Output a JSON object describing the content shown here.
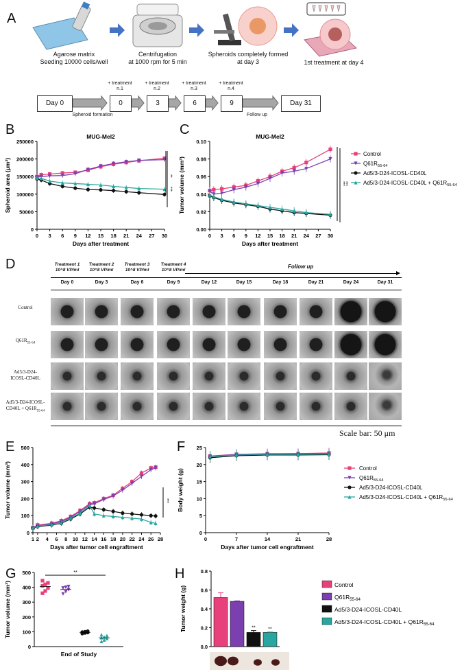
{
  "panels": {
    "A": "A",
    "B": "B",
    "C": "C",
    "D": "D",
    "E": "E",
    "F": "F",
    "G": "G",
    "H": "H"
  },
  "panelA": {
    "step1": [
      "Agarose matrix",
      "Seeding 10000 cells/well"
    ],
    "step2": [
      "Centrifugation",
      "at 1000 rpm for 5 min"
    ],
    "step3": [
      "Spheroids completely formed",
      "at day 3"
    ],
    "step4": "1st treatment at day 4",
    "timeline": {
      "boxes": [
        "Day 0",
        "0",
        "3",
        "6",
        "9",
        "Day 31"
      ],
      "treat_top": [
        "+ treatment",
        "+ treatment",
        "+ treatment",
        "+ treatment"
      ],
      "treat_n": [
        "n.1",
        "n.2",
        "n.3",
        "n.4"
      ],
      "spheroid_formation": "Spheroid formation",
      "follow_up": "Follow up"
    }
  },
  "panelD": {
    "treatments": [
      [
        "Treatment 1",
        "10^8 VP/ml"
      ],
      [
        "Treatment 2",
        "10^8 VP/ml"
      ],
      [
        "Treatment 3",
        "10^8 VP/ml"
      ],
      [
        "Treatment 4",
        "10^8 VP/ml"
      ]
    ],
    "follow_up": "Follow up",
    "days": [
      "Day 0",
      "Day 3",
      "Day 6",
      "Day 9",
      "Day 12",
      "Day 15",
      "Day 18",
      "Day 21",
      "Day 24",
      "Day 31"
    ],
    "rows": [
      [
        "Control"
      ],
      [
        "Q61R55-64"
      ],
      [
        "Ad5/3-D24-",
        "ICOSL-CD40L"
      ],
      [
        "Ad5/3-D24-ICOSL-",
        "CD40L + Q61R55-64"
      ]
    ],
    "scale_bar": "Scale bar: 50 μm"
  },
  "colors": {
    "control": "#e8407a",
    "q61r": "#7b3fb0",
    "ad": "#111111",
    "combo": "#2aa6a0"
  },
  "legend": [
    "Control",
    "Q61R55-64",
    "Ad5/3-D24-ICOSL-CD40L",
    "Ad5/3-D24-ICOSL-CD40L + Q61R55-64"
  ],
  "chart_data": [
    {
      "id": "B",
      "type": "line",
      "title": "MUG-Mel2",
      "xlabel": "Days after treatment",
      "ylabel": "Spheroid area (μm²)",
      "x": [
        0,
        1,
        3,
        6,
        9,
        12,
        15,
        18,
        21,
        24,
        30
      ],
      "xticks": [
        0,
        3,
        6,
        9,
        12,
        15,
        18,
        21,
        24,
        27,
        30
      ],
      "ylim": [
        0,
        250000
      ],
      "yticks": [
        0,
        50000,
        100000,
        150000,
        200000,
        250000
      ],
      "series": [
        {
          "name": "Control",
          "values": [
            150000,
            155000,
            157000,
            160000,
            162000,
            168000,
            178000,
            185000,
            190000,
            195000,
            202000
          ]
        },
        {
          "name": "Q61R55-64",
          "values": [
            149000,
            150000,
            152000,
            153000,
            158000,
            170000,
            180000,
            187000,
            192000,
            196000,
            198000
          ]
        },
        {
          "name": "Ad5/3-D24-ICOSL-CD40L",
          "values": [
            143000,
            140000,
            130000,
            122000,
            117000,
            113000,
            112000,
            110000,
            107000,
            104000,
            99000
          ]
        },
        {
          "name": "Ad5/3-D24-ICOSL-CD40L + Q61R55-64",
          "values": [
            146000,
            145000,
            137000,
            132000,
            130000,
            128000,
            126000,
            122000,
            119000,
            116000,
            114000
          ]
        }
      ],
      "significance": [
        "**",
        "***"
      ]
    },
    {
      "id": "C",
      "type": "line",
      "title": "MUG-Mel2",
      "xlabel": "Days after treatment",
      "ylabel": "Tumor volume (mm³)",
      "x": [
        0,
        1,
        3,
        6,
        9,
        12,
        15,
        18,
        21,
        24,
        30
      ],
      "xticks": [
        0,
        3,
        6,
        9,
        12,
        15,
        18,
        21,
        24,
        27,
        30
      ],
      "ylim": [
        0,
        0.1
      ],
      "yticks": [
        0.0,
        0.02,
        0.04,
        0.06,
        0.08,
        0.1
      ],
      "series": [
        {
          "name": "Control",
          "values": [
            0.044,
            0.045,
            0.046,
            0.048,
            0.05,
            0.055,
            0.06,
            0.066,
            0.07,
            0.076,
            0.091
          ]
        },
        {
          "name": "Q61R55-64",
          "values": [
            0.043,
            0.04,
            0.041,
            0.045,
            0.048,
            0.052,
            0.058,
            0.064,
            0.066,
            0.069,
            0.08
          ]
        },
        {
          "name": "Ad5/3-D24-ICOSL-CD40L",
          "values": [
            0.038,
            0.036,
            0.033,
            0.03,
            0.028,
            0.026,
            0.023,
            0.021,
            0.019,
            0.018,
            0.016
          ]
        },
        {
          "name": "Ad5/3-D24-ICOSL-CD40L + Q61R55-64",
          "values": [
            0.039,
            0.037,
            0.034,
            0.031,
            0.029,
            0.027,
            0.025,
            0.023,
            0.021,
            0.019,
            0.017
          ]
        }
      ],
      "significance": [
        "***",
        "***"
      ]
    },
    {
      "id": "E",
      "type": "line",
      "xlabel": "Days after tumor cell engraftment",
      "ylabel": "Tumor volume (mm³)",
      "x": [
        1,
        2,
        5,
        7,
        9,
        11,
        13,
        14,
        16,
        18,
        20,
        22,
        24,
        26,
        27
      ],
      "xticks": [
        1,
        2,
        4,
        6,
        8,
        10,
        12,
        14,
        16,
        18,
        20,
        22,
        24,
        26,
        28
      ],
      "ylim": [
        0,
        500
      ],
      "yticks": [
        0,
        100,
        200,
        300,
        400,
        500
      ],
      "series": [
        {
          "name": "Control",
          "values": [
            30,
            45,
            55,
            70,
            95,
            130,
            170,
            175,
            200,
            220,
            260,
            300,
            350,
            380,
            385
          ]
        },
        {
          "name": "Q61R55-64",
          "values": [
            28,
            40,
            52,
            65,
            90,
            125,
            165,
            170,
            195,
            215,
            250,
            290,
            330,
            370,
            380
          ]
        },
        {
          "name": "Ad5/3-D24-ICOSL-CD40L",
          "values": [
            25,
            35,
            45,
            55,
            80,
            110,
            150,
            145,
            135,
            125,
            115,
            110,
            105,
            100,
            98
          ]
        },
        {
          "name": "Ad5/3-D24-ICOSL-CD40L + Q61R55-64",
          "values": [
            27,
            38,
            48,
            58,
            85,
            115,
            160,
            110,
            100,
            95,
            90,
            85,
            80,
            60,
            55
          ]
        }
      ],
      "significance": [
        "***"
      ]
    },
    {
      "id": "F",
      "type": "line",
      "xlabel": "Days after tumor cell engraftment",
      "ylabel": "Body weight (g)",
      "x": [
        1,
        7,
        14,
        21,
        28
      ],
      "xticks": [
        0,
        7,
        14,
        21,
        28
      ],
      "ylim": [
        0,
        25
      ],
      "yticks": [
        0,
        5,
        10,
        15,
        20,
        25
      ],
      "series": [
        {
          "name": "Control",
          "values": [
            22.5,
            23.0,
            23.2,
            23.2,
            23.4
          ]
        },
        {
          "name": "Q61R55-64",
          "values": [
            22.4,
            23.0,
            23.1,
            23.2,
            23.2
          ]
        },
        {
          "name": "Ad5/3-D24-ICOSL-CD40L",
          "values": [
            22.0,
            22.6,
            22.8,
            22.8,
            22.9
          ]
        },
        {
          "name": "Ad5/3-D24-ICOSL-CD40L + Q61R55-64",
          "values": [
            22.3,
            22.8,
            23.0,
            23.0,
            23.1
          ]
        }
      ]
    },
    {
      "id": "G",
      "type": "scatter",
      "xlabel": "End of Study",
      "ylabel": "Tumor volume (mm³)",
      "ylim": [
        0,
        500
      ],
      "yticks": [
        0,
        100,
        200,
        300,
        400,
        500
      ],
      "groups": [
        {
          "name": "Control",
          "values": [
            360,
            375,
            395,
            410,
            420,
            430,
            445
          ]
        },
        {
          "name": "Q61R55-64",
          "values": [
            355,
            370,
            385,
            395,
            400,
            405
          ]
        },
        {
          "name": "Ad5/3-D24-ICOSL-CD40L",
          "values": [
            88,
            92,
            95,
            98,
            100,
            104
          ]
        },
        {
          "name": "Ad5/3-D24-ICOSL-CD40L + Q61R55-64",
          "values": [
            35,
            45,
            55,
            60,
            65,
            75,
            80
          ]
        }
      ],
      "significance": "**"
    },
    {
      "id": "H",
      "type": "bar",
      "ylabel": "Tumor weight (g)",
      "ylim": [
        0,
        0.8
      ],
      "yticks": [
        0.0,
        0.2,
        0.4,
        0.6,
        0.8
      ],
      "categories": [
        "Control",
        "Q61R55-64",
        "Ad5/3-D24-ICOSL-CD40L",
        "Ad5/3-D24-ICOSL-CD40L + Q61R55-64"
      ],
      "values": [
        0.52,
        0.48,
        0.15,
        0.15
      ],
      "errors": [
        0.05,
        0.005,
        0.02,
        0.005
      ],
      "significance": [
        "",
        "",
        "**",
        "**"
      ]
    }
  ]
}
